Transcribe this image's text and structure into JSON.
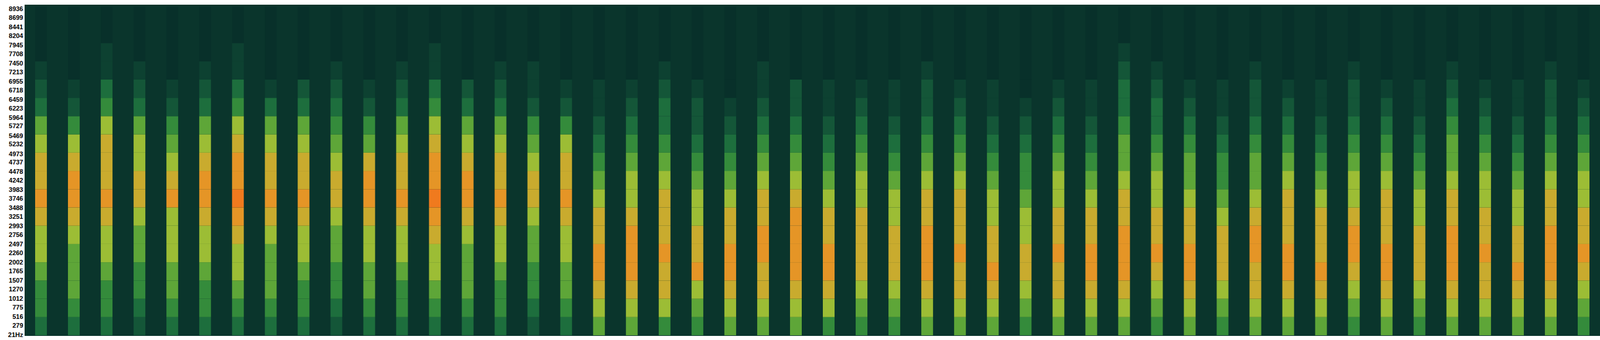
{
  "chart_data": {
    "type": "heatmap",
    "tick_labels": "y",
    "grid": false,
    "ylim": [
      0,
      9050
    ],
    "yticks": [
      8936,
      8699,
      8441,
      8204,
      7945,
      7708,
      7450,
      7213,
      6955,
      6718,
      6459,
      6223,
      5964,
      5727,
      5469,
      5232,
      4973,
      4737,
      4478,
      4242,
      3983,
      3746,
      3488,
      3251,
      2993,
      2756,
      2497,
      2260,
      2002,
      1765,
      1507,
      1270,
      1012,
      775,
      516,
      279,
      {
        "value": 21,
        "label": "21Hz"
      }
    ],
    "zlim": [
      0,
      9
    ],
    "y_bins": [
      0,
      500,
      1000,
      1500,
      2000,
      2500,
      3000,
      3500,
      4000,
      4500,
      5000,
      5500,
      6000,
      6500,
      7000,
      7500,
      8000,
      8500,
      9000
    ],
    "cells": [
      [
        3,
        3,
        3,
        2,
        3,
        3,
        3,
        3,
        3,
        2,
        3,
        3,
        3,
        3,
        3,
        2,
        3,
        5,
        5,
        4,
        4,
        5,
        5,
        5,
        4,
        4,
        4,
        5,
        5,
        5,
        4,
        5,
        5,
        5,
        4,
        5,
        4,
        5,
        5,
        5,
        4,
        5,
        4,
        5,
        5,
        5,
        5,
        4
      ],
      [
        4,
        4,
        4,
        3,
        4,
        4,
        4,
        4,
        4,
        3,
        4,
        4,
        4,
        4,
        4,
        3,
        4,
        6,
        6,
        6,
        5,
        6,
        6,
        6,
        6,
        5,
        5,
        6,
        6,
        6,
        5,
        6,
        6,
        6,
        5,
        6,
        5,
        6,
        6,
        6,
        5,
        6,
        5,
        6,
        6,
        6,
        6,
        5
      ],
      [
        4,
        5,
        4,
        4,
        5,
        4,
        5,
        5,
        4,
        4,
        5,
        4,
        5,
        5,
        4,
        4,
        5,
        7,
        7,
        7,
        6,
        7,
        7,
        7,
        7,
        6,
        6,
        7,
        7,
        7,
        6,
        7,
        7,
        7,
        6,
        7,
        6,
        7,
        7,
        7,
        6,
        7,
        6,
        7,
        7,
        7,
        7,
        6
      ],
      [
        5,
        5,
        5,
        4,
        5,
        5,
        6,
        5,
        5,
        4,
        5,
        5,
        6,
        5,
        5,
        4,
        5,
        8,
        8,
        7,
        8,
        8,
        7,
        8,
        8,
        7,
        7,
        8,
        7,
        8,
        7,
        7,
        8,
        8,
        7,
        8,
        7,
        7,
        8,
        8,
        7,
        8,
        7,
        8,
        7,
        8,
        8,
        7
      ],
      [
        6,
        5,
        6,
        5,
        6,
        6,
        6,
        5,
        6,
        5,
        6,
        6,
        6,
        5,
        6,
        5,
        6,
        8,
        8,
        8,
        7,
        8,
        8,
        8,
        8,
        7,
        7,
        8,
        8,
        7,
        7,
        8,
        8,
        8,
        8,
        8,
        7,
        8,
        8,
        7,
        8,
        8,
        7,
        8,
        8,
        7,
        8,
        8
      ],
      [
        6,
        6,
        6,
        5,
        6,
        6,
        7,
        6,
        6,
        5,
        6,
        6,
        7,
        6,
        6,
        5,
        6,
        7,
        8,
        7,
        7,
        7,
        8,
        8,
        7,
        7,
        7,
        8,
        7,
        7,
        6,
        7,
        7,
        8,
        7,
        7,
        7,
        8,
        7,
        7,
        8,
        7,
        7,
        8,
        7,
        7,
        8,
        7
      ],
      [
        7,
        7,
        7,
        6,
        6,
        7,
        8,
        7,
        7,
        6,
        7,
        7,
        8,
        7,
        7,
        6,
        7,
        7,
        7,
        7,
        6,
        7,
        7,
        8,
        7,
        7,
        6,
        7,
        7,
        6,
        6,
        7,
        7,
        7,
        7,
        7,
        6,
        7,
        7,
        7,
        7,
        7,
        6,
        7,
        7,
        6,
        7,
        7
      ],
      [
        8,
        8,
        8,
        7,
        8,
        8,
        9,
        8,
        8,
        7,
        8,
        8,
        9,
        8,
        8,
        7,
        8,
        6,
        6,
        7,
        6,
        6,
        7,
        7,
        6,
        6,
        6,
        7,
        7,
        6,
        5,
        6,
        6,
        7,
        6,
        6,
        5,
        6,
        7,
        6,
        6,
        7,
        6,
        7,
        6,
        6,
        7,
        6
      ],
      [
        7,
        8,
        7,
        7,
        7,
        8,
        8,
        7,
        7,
        7,
        8,
        7,
        8,
        8,
        7,
        7,
        7,
        5,
        6,
        6,
        5,
        5,
        6,
        6,
        5,
        6,
        5,
        6,
        6,
        5,
        4,
        6,
        5,
        6,
        6,
        5,
        4,
        5,
        6,
        5,
        6,
        6,
        5,
        6,
        6,
        5,
        6,
        6
      ],
      [
        7,
        7,
        7,
        6,
        6,
        7,
        8,
        7,
        7,
        6,
        7,
        7,
        8,
        7,
        7,
        6,
        7,
        4,
        5,
        5,
        4,
        4,
        5,
        5,
        4,
        5,
        4,
        5,
        5,
        4,
        4,
        5,
        4,
        5,
        5,
        5,
        4,
        5,
        5,
        4,
        5,
        5,
        4,
        5,
        5,
        4,
        5,
        5
      ],
      [
        6,
        6,
        7,
        6,
        5,
        6,
        7,
        6,
        6,
        5,
        5,
        6,
        7,
        6,
        6,
        5,
        6,
        3,
        4,
        4,
        3,
        3,
        4,
        4,
        3,
        4,
        3,
        4,
        4,
        3,
        3,
        4,
        3,
        5,
        4,
        4,
        3,
        4,
        4,
        3,
        4,
        4,
        3,
        5,
        4,
        3,
        4,
        4
      ],
      [
        5,
        4,
        6,
        5,
        4,
        5,
        6,
        5,
        5,
        4,
        4,
        5,
        6,
        5,
        5,
        4,
        4,
        2,
        3,
        3,
        2,
        2,
        3,
        3,
        2,
        3,
        2,
        3,
        3,
        2,
        2,
        3,
        2,
        4,
        3,
        3,
        2,
        3,
        3,
        2,
        3,
        3,
        2,
        4,
        3,
        2,
        3,
        3
      ],
      [
        3,
        2,
        4,
        3,
        2,
        3,
        4,
        3,
        3,
        3,
        2,
        3,
        4,
        3,
        3,
        2,
        2,
        1,
        2,
        3,
        2,
        1,
        2,
        2,
        1,
        2,
        1,
        2,
        2,
        1,
        1,
        2,
        1,
        3,
        3,
        2,
        1,
        2,
        2,
        1,
        2,
        2,
        1,
        3,
        2,
        1,
        2,
        2
      ],
      [
        2,
        1,
        3,
        2,
        1,
        2,
        3,
        1,
        2,
        2,
        1,
        2,
        3,
        2,
        2,
        1,
        1,
        1,
        1,
        2,
        1,
        0,
        1,
        2,
        1,
        1,
        1,
        2,
        1,
        1,
        0,
        1,
        1,
        3,
        2,
        1,
        1,
        2,
        1,
        1,
        2,
        1,
        1,
        2,
        1,
        1,
        2,
        1
      ],
      [
        1,
        0,
        1,
        1,
        0,
        1,
        1,
        0,
        0,
        1,
        0,
        1,
        1,
        0,
        1,
        1,
        0,
        0,
        0,
        1,
        0,
        0,
        1,
        0,
        0,
        0,
        0,
        1,
        0,
        0,
        0,
        0,
        0,
        2,
        1,
        0,
        0,
        1,
        0,
        0,
        1,
        0,
        0,
        1,
        0,
        0,
        1,
        0
      ],
      [
        0,
        0,
        1,
        0,
        0,
        0,
        1,
        0,
        0,
        0,
        0,
        0,
        1,
        0,
        0,
        0,
        0,
        0,
        0,
        0,
        0,
        0,
        0,
        0,
        0,
        0,
        0,
        0,
        0,
        0,
        0,
        0,
        0,
        1,
        0,
        0,
        0,
        0,
        0,
        0,
        0,
        0,
        0,
        0,
        0,
        0,
        0,
        0
      ],
      [
        0,
        0,
        0,
        0,
        0,
        0,
        0,
        0,
        0,
        0,
        0,
        0,
        0,
        0,
        0,
        0,
        0,
        0,
        0,
        0,
        0,
        0,
        0,
        0,
        0,
        0,
        0,
        0,
        0,
        0,
        0,
        0,
        0,
        0,
        0,
        0,
        0,
        0,
        0,
        0,
        0,
        0,
        0,
        0,
        0,
        0,
        0,
        0
      ],
      [
        0,
        0,
        0,
        0,
        0,
        0,
        0,
        0,
        0,
        0,
        0,
        0,
        0,
        0,
        0,
        0,
        0,
        0,
        0,
        0,
        0,
        0,
        0,
        0,
        0,
        0,
        0,
        0,
        0,
        0,
        0,
        0,
        0,
        0,
        0,
        0,
        0,
        0,
        0,
        0,
        0,
        0,
        0,
        0,
        0,
        0,
        0,
        0
      ]
    ]
  }
}
